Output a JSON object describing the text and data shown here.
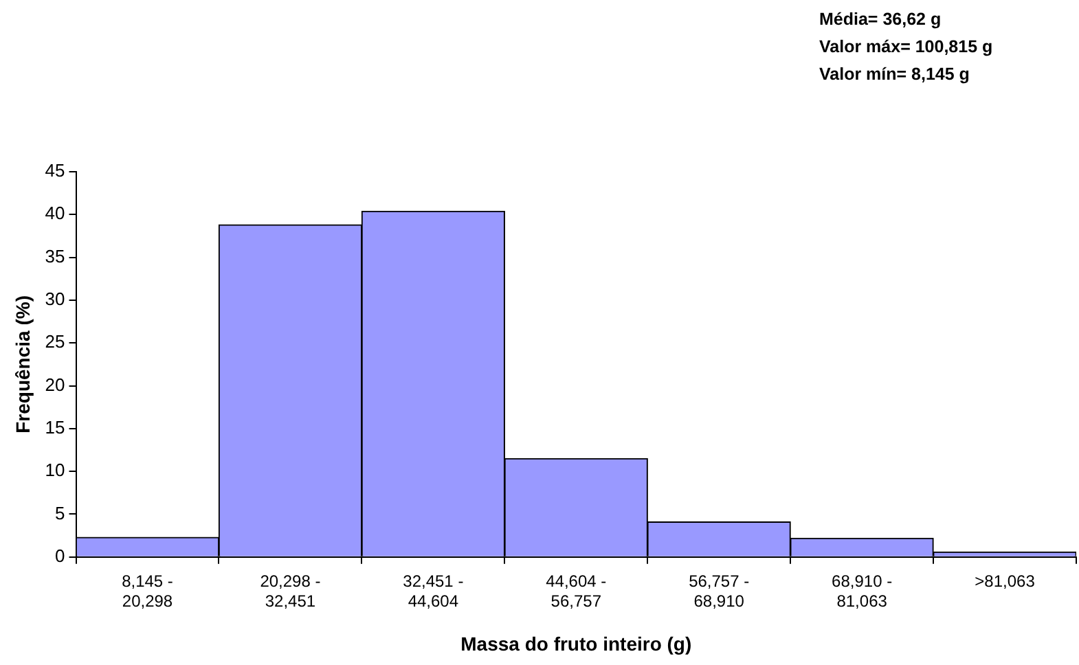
{
  "chart_data": {
    "type": "bar",
    "xlabel": "Massa do fruto inteiro (g)",
    "ylabel": "Frequência (%)",
    "annotations": [
      "Média= 36,62 g",
      "Valor máx= 100,815 g",
      "Valor mín= 8,145 g"
    ],
    "categories": [
      "8,145 - 20,298",
      "20,298 - 32,451",
      "32,451 - 44,604",
      "44,604 - 56,757",
      "56,757 - 68,910",
      "68,910 - 81,063",
      ">81,063"
    ],
    "values": [
      2.3,
      38.8,
      40.4,
      11.5,
      4.1,
      2.2,
      0.6
    ],
    "color": "#9999ff",
    "ylim": [
      0,
      45
    ],
    "yticks": [
      0,
      5,
      10,
      15,
      20,
      25,
      30,
      35,
      40,
      45
    ],
    "grid": false,
    "legend": false
  }
}
